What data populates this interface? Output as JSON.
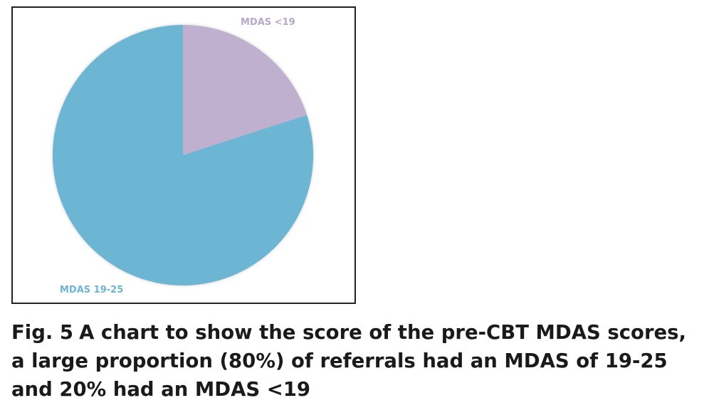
{
  "chart_data": {
    "type": "pie",
    "slices": [
      {
        "label": "MDAS <19",
        "value": 20,
        "color": "#bfb0d0"
      },
      {
        "label": "MDAS 19-25",
        "value": 80,
        "color": "#6cb5d3"
      }
    ],
    "start_angle_deg": 0,
    "direction": "clockwise"
  },
  "caption": {
    "figure_number": "Fig. 5",
    "text": "A chart to show the score of the pre-CBT MDAS scores, a large proportion (80%) of referrals had an MDAS of 19-25 and 20% had an MDAS <19"
  }
}
